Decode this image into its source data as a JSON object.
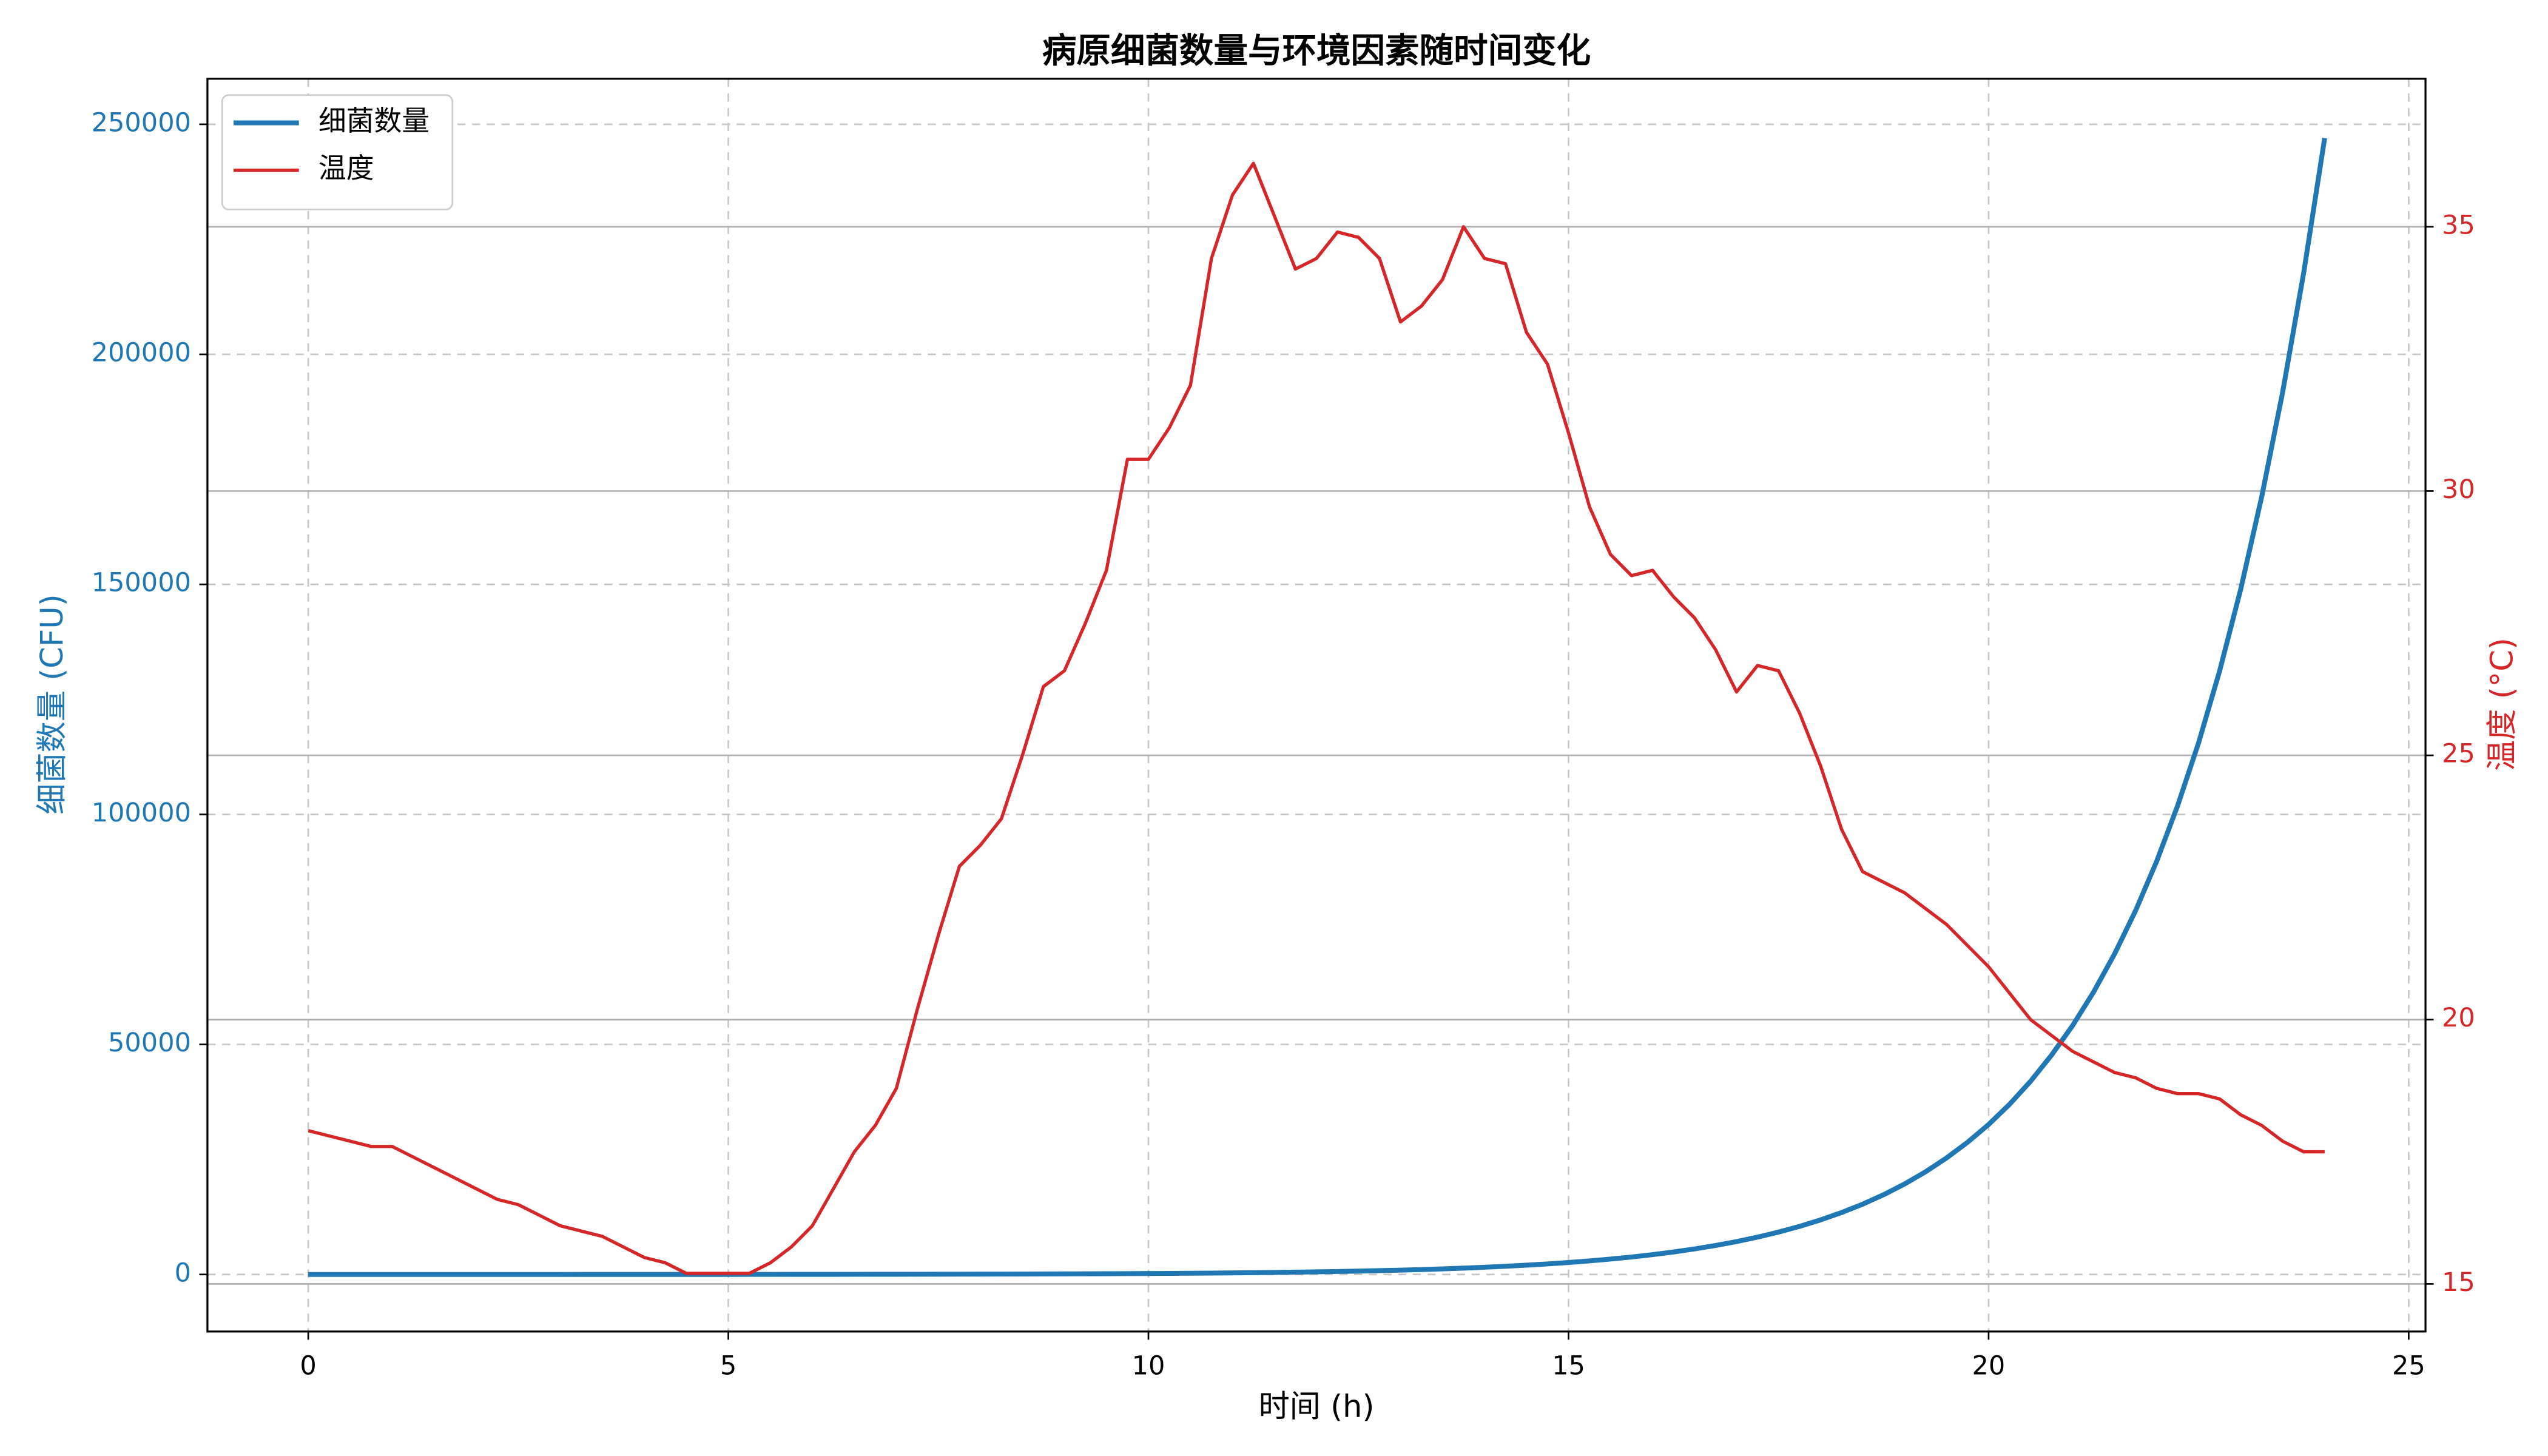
{
  "chart_data": {
    "type": "line",
    "title": "病原细菌数量与环境因素随时间变化",
    "x_label": "时间 (h)",
    "y_label": "细菌数量 (CFU)",
    "y2_label": "温度 (°C)",
    "x": [
      0,
      0.25,
      0.5,
      0.75,
      1,
      1.25,
      1.5,
      1.75,
      2,
      2.25,
      2.5,
      2.75,
      3,
      3.25,
      3.5,
      3.75,
      4,
      4.25,
      4.5,
      4.75,
      5,
      5.25,
      5.5,
      5.75,
      6,
      6.25,
      6.5,
      6.75,
      7,
      7.25,
      7.5,
      7.75,
      8,
      8.25,
      8.5,
      8.75,
      9,
      9.25,
      9.5,
      9.75,
      10,
      10.25,
      10.5,
      10.75,
      11,
      11.25,
      11.5,
      11.75,
      12,
      12.25,
      12.5,
      12.75,
      13,
      13.25,
      13.5,
      13.75,
      14,
      14.25,
      14.5,
      14.75,
      15,
      15.25,
      15.5,
      15.75,
      16,
      16.25,
      16.5,
      16.75,
      17,
      17.25,
      17.5,
      17.75,
      18,
      18.25,
      18.5,
      18.75,
      19,
      19.25,
      19.5,
      19.75,
      20,
      20.25,
      20.5,
      20.75,
      21,
      21.25,
      21.5,
      21.75,
      22,
      22.25,
      22.5,
      22.75,
      23,
      23.25,
      23.5,
      23.75,
      24
    ],
    "series": [
      {
        "name": "细菌数量",
        "color": "#1f77b4",
        "axis": "y",
        "width": 3,
        "values": [
          1,
          1,
          2,
          2,
          2,
          2,
          3,
          3,
          4,
          4,
          5,
          5,
          6,
          7,
          8,
          9,
          10,
          11,
          13,
          14,
          16,
          19,
          21,
          24,
          27,
          31,
          35,
          40,
          46,
          52,
          59,
          67,
          76,
          86,
          97,
          110,
          125,
          142,
          161,
          183,
          207,
          235,
          267,
          303,
          344,
          390,
          443,
          502,
          570,
          647,
          734,
          833,
          945,
          1070,
          1220,
          1380,
          1570,
          1780,
          2020,
          2290,
          2600,
          2950,
          3350,
          3800,
          4310,
          4890,
          5550,
          6300,
          7150,
          8120,
          9210,
          10450,
          11860,
          13460,
          15270,
          17330,
          19670,
          22320,
          25330,
          28740,
          32600,
          37000,
          42000,
          47700,
          54100,
          61400,
          69700,
          79100,
          89800,
          101900,
          115600,
          131200,
          148900,
          169000,
          191800,
          217700,
          247000
        ]
      },
      {
        "name": "温度",
        "color": "#d62728",
        "axis": "y2",
        "width": 2,
        "values": [
          17.9,
          17.8,
          17.7,
          17.6,
          17.6,
          17.4,
          17.2,
          17.0,
          16.8,
          16.6,
          16.5,
          16.3,
          16.1,
          16.0,
          15.9,
          15.7,
          15.5,
          15.4,
          15.2,
          15.2,
          15.2,
          15.2,
          15.4,
          15.7,
          16.1,
          16.8,
          17.5,
          18.0,
          18.7,
          20.2,
          21.6,
          22.9,
          23.3,
          23.8,
          25.0,
          26.3,
          26.6,
          27.5,
          28.5,
          30.6,
          30.6,
          31.2,
          32.0,
          34.4,
          35.6,
          36.2,
          35.2,
          34.2,
          34.4,
          34.9,
          34.8,
          34.4,
          33.2,
          33.5,
          34.0,
          35.0,
          34.4,
          34.3,
          33.0,
          32.4,
          31.1,
          29.7,
          28.8,
          28.4,
          28.5,
          28.0,
          27.6,
          27.0,
          26.2,
          26.7,
          26.6,
          25.8,
          24.8,
          23.6,
          22.8,
          22.6,
          22.4,
          22.1,
          21.8,
          21.4,
          21.0,
          20.5,
          20.0,
          19.7,
          19.4,
          19.2,
          19.0,
          18.9,
          18.7,
          18.6,
          18.6,
          18.5,
          18.2,
          18.0,
          17.7,
          17.5,
          17.5
        ]
      }
    ],
    "xlim": [
      -1.2,
      25.2
    ],
    "xticks": [
      0,
      5,
      10,
      15,
      20,
      25
    ],
    "ylim": [
      -12400,
      259900
    ],
    "yticks": [
      0,
      50000,
      100000,
      150000,
      200000,
      250000
    ],
    "y2lim": [
      14.1,
      37.8
    ],
    "y2ticks": [
      15,
      20,
      25,
      30,
      35
    ],
    "grid": true,
    "legend": "upper-left"
  }
}
